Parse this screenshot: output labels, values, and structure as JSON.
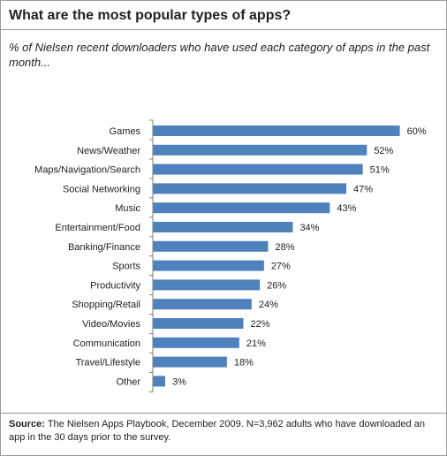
{
  "chart_data": {
    "type": "bar",
    "orientation": "horizontal",
    "title": "What are the most popular types of apps?",
    "subtitle": "% of Nielsen recent downloaders who have used each category of apps in the past month...",
    "categories": [
      "Games",
      "News/Weather",
      "Maps/Navigation/Search",
      "Social Networking",
      "Music",
      "Entertainment/Food",
      "Banking/Finance",
      "Sports",
      "Productivity",
      "Shopping/Retail",
      "Video/Movies",
      "Communication",
      "Travel/Lifestyle",
      "Other"
    ],
    "values": [
      60,
      52,
      51,
      47,
      43,
      34,
      28,
      27,
      26,
      24,
      22,
      21,
      18,
      3
    ],
    "value_labels": [
      "60%",
      "52%",
      "51%",
      "47%",
      "43%",
      "34%",
      "28%",
      "27%",
      "26%",
      "24%",
      "22%",
      "21%",
      "18%",
      "3%"
    ],
    "bar_color": "#4f81bd",
    "xlim": [
      0,
      62
    ],
    "grid": false
  },
  "source": {
    "label": "Source:",
    "text": " The Nielsen Apps Playbook, December 2009. N=3,962 adults who have downloaded an app in the 30 days prior to the survey."
  }
}
